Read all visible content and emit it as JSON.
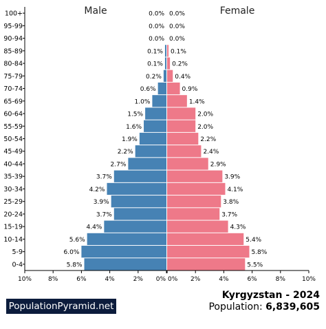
{
  "chart_data": {
    "type": "bar",
    "orientation": "horizontal-pyramid",
    "headers": {
      "left": "Male",
      "right": "Female"
    },
    "categories": [
      "100+",
      "95-99",
      "90-94",
      "85-89",
      "80-84",
      "75-79",
      "70-74",
      "65-69",
      "60-64",
      "55-59",
      "50-54",
      "45-49",
      "40-44",
      "35-39",
      "30-34",
      "25-29",
      "20-24",
      "15-19",
      "10-14",
      "5-9",
      "0-4"
    ],
    "series": [
      {
        "name": "Male",
        "color": "#4682b4",
        "values": [
          0.0,
          0.0,
          0.0,
          0.1,
          0.1,
          0.2,
          0.6,
          1.0,
          1.5,
          1.6,
          1.9,
          2.2,
          2.7,
          3.7,
          4.2,
          3.9,
          3.7,
          4.4,
          5.6,
          6.0,
          5.8
        ],
        "labels": [
          "0.0%",
          "0.0%",
          "0.0%",
          "0.1%",
          "0.1%",
          "0.2%",
          "0.6%",
          "1.0%",
          "1.5%",
          "1.6%",
          "1.9%",
          "2.2%",
          "2.7%",
          "3.7%",
          "4.2%",
          "3.9%",
          "3.7%",
          "4.4%",
          "5.6%",
          "6.0%",
          "5.8%"
        ]
      },
      {
        "name": "Female",
        "color": "#ee7989",
        "values": [
          0.0,
          0.0,
          0.0,
          0.1,
          0.2,
          0.4,
          0.9,
          1.4,
          2.0,
          2.0,
          2.2,
          2.4,
          2.9,
          3.9,
          4.1,
          3.8,
          3.7,
          4.3,
          5.4,
          5.8,
          5.5
        ],
        "labels": [
          "0.0%",
          "0.0%",
          "0.0%",
          "0.1%",
          "0.2%",
          "0.4%",
          "0.9%",
          "1.4%",
          "2.0%",
          "2.0%",
          "2.2%",
          "2.4%",
          "2.9%",
          "3.9%",
          "4.1%",
          "3.8%",
          "3.7%",
          "4.3%",
          "5.4%",
          "5.8%",
          "5.5%"
        ]
      }
    ],
    "xlim": [
      0,
      10
    ],
    "x_ticks_left": [
      "10%",
      "8%",
      "6%",
      "4%",
      "2%",
      "0%"
    ],
    "x_ticks_right": [
      "0%",
      "2%",
      "4%",
      "6%",
      "8%",
      "10%"
    ],
    "grid": false
  },
  "footer": {
    "brand": "PopulationPyramid.net",
    "country_year": "Kyrgyzstan - 2024",
    "population_label": "Population: ",
    "population_value": "6,839,605"
  }
}
